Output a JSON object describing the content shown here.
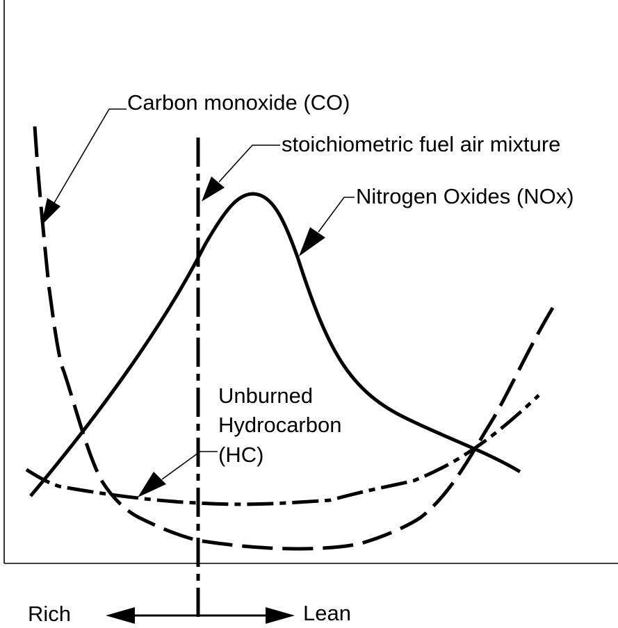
{
  "labels": {
    "co": "Carbon monoxide (CO)",
    "stoich": "stoichiometric fuel air mixture",
    "nox": "Nitrogen Oxides (NOx)",
    "hc_line1": "Unburned",
    "hc_line2": "Hydrocarbon",
    "hc_line3": "(HC)",
    "rich": "Rich",
    "lean": "Lean"
  },
  "colors": {
    "ink": "#000000",
    "background": "#ffffff"
  }
}
